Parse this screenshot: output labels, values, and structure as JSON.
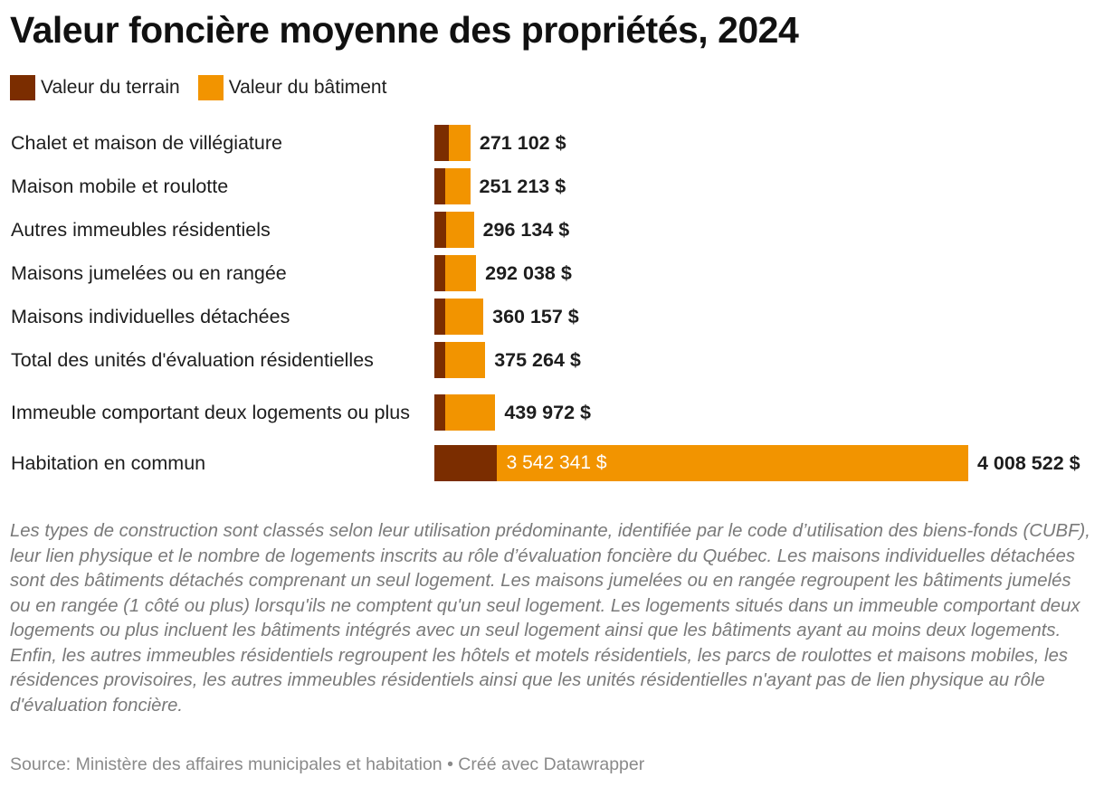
{
  "title": "Valeur foncière moyenne des propriétés, 2024",
  "legend": [
    {
      "label": "Valeur du terrain",
      "color": "#7b2d00"
    },
    {
      "label": "Valeur du bâtiment",
      "color": "#f29400"
    }
  ],
  "chart_data": {
    "type": "bar",
    "orientation": "horizontal",
    "stacked": true,
    "title": "Valeur foncière moyenne des propriétés, 2024",
    "categories": [
      "Chalet et maison de villégiature",
      "Maison mobile et roulotte",
      "Autres immeubles résidentiels",
      "Maisons jumelées ou en rangée",
      "Maisons individuelles détachées",
      "Total des unités d'évaluation résidentielles",
      "Immeuble comportant deux logements ou plus",
      "Habitation en commun"
    ],
    "series": [
      {
        "name": "Valeur du terrain",
        "color": "#7b2d00",
        "values": [
          110000,
          64000,
          88000,
          60000,
          74000,
          75000,
          64000,
          466181
        ]
      },
      {
        "name": "Valeur du bâtiment",
        "color": "#f29400",
        "values": [
          161102,
          187213,
          208134,
          232038,
          286157,
          300264,
          375972,
          3542341
        ]
      }
    ],
    "totals": [
      271102,
      251213,
      296134,
      292038,
      360157,
      375264,
      439972,
      4008522
    ],
    "total_labels": [
      "271 102 $",
      "251 213 $",
      "296 134 $",
      "292 038 $",
      "360 157 $",
      "375 264 $",
      "439 972 $",
      "4 008 522 $"
    ],
    "inner_labels": [
      "",
      "",
      "",
      "",
      "",
      "",
      "",
      "3 542 341 $"
    ],
    "xlim": [
      0,
      4008522
    ],
    "grid": false,
    "legend_position": "top-left"
  },
  "notes": "Les types de construction sont classés selon leur utilisation prédominante, identifiée par le code d’utilisation des biens-fonds (CUBF), leur lien physique et le nombre de logements inscrits au rôle d’évaluation foncière du Québec. Les maisons individuelles détachées sont des bâtiments détachés comprenant un seul logement. Les maisons jumelées ou en rangée regroupent les bâtiments jumelés ou en rangée (1 côté ou plus) lorsqu'ils ne comptent qu'un seul logement. Les logements situés dans un immeuble comportant deux logements ou plus incluent les bâtiments intégrés avec un seul logement ainsi que les bâtiments ayant au moins deux logements. Enfin, les autres immeubles résidentiels regroupent les hôtels et motels résidentiels, les parcs de roulottes et maisons mobiles, les résidences provisoires, les autres immeubles résidentiels ainsi que les unités résidentielles n'ayant pas de lien physique au rôle d'évaluation foncière.",
  "source": "Source: Ministère des affaires municipales et habitation • Créé avec Datawrapper"
}
